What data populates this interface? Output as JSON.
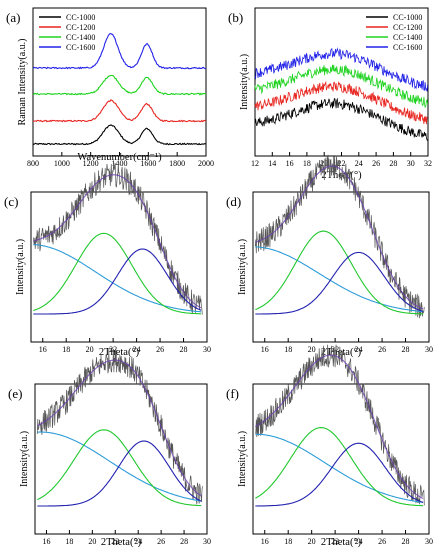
{
  "chart_data": [
    {
      "panel": "(a)",
      "type": "line",
      "xlabel": "Wavenumber(cm⁻¹)",
      "ylabel": "Raman Intensity(a.u.)",
      "xlim": [
        800,
        2000
      ],
      "x_ticks": [
        "800",
        "1000",
        "1200",
        "1400",
        "1600",
        "1800",
        "2000"
      ],
      "legend_position": "top-left",
      "series": [
        {
          "name": "CC-1000",
          "color": "#000000",
          "offset": 0,
          "peaks": [
            {
              "center": 1340,
              "height": 0.55,
              "width": 55
            },
            {
              "center": 1590,
              "height": 0.45,
              "width": 40
            }
          ]
        },
        {
          "name": "CC-1200",
          "color": "#e8251f",
          "offset": 1,
          "peaks": [
            {
              "center": 1340,
              "height": 0.6,
              "width": 55
            },
            {
              "center": 1590,
              "height": 0.5,
              "width": 40
            }
          ]
        },
        {
          "name": "CC-1400",
          "color": "#1ed31e",
          "offset": 2,
          "peaks": [
            {
              "center": 1340,
              "height": 0.55,
              "width": 55
            },
            {
              "center": 1590,
              "height": 0.48,
              "width": 40
            }
          ]
        },
        {
          "name": "CC-1600",
          "color": "#2222e8",
          "offset": 3,
          "peaks": [
            {
              "center": 1340,
              "height": 1.0,
              "width": 50
            },
            {
              "center": 1590,
              "height": 0.7,
              "width": 38
            }
          ]
        }
      ]
    },
    {
      "panel": "(b)",
      "type": "line",
      "xlabel": "2Theta(°)",
      "ylabel": "Intensity(a.u.)",
      "xlim": [
        12,
        32
      ],
      "x_ticks": [
        "12",
        "14",
        "16",
        "18",
        "20",
        "22",
        "24",
        "26",
        "28",
        "30",
        "32"
      ],
      "legend_position": "top-right",
      "series": [
        {
          "name": "CC-1000",
          "color": "#000000",
          "offset": 0
        },
        {
          "name": "CC-1200",
          "color": "#e8251f",
          "offset": 1
        },
        {
          "name": "CC-1400",
          "color": "#1ed31e",
          "offset": 2
        },
        {
          "name": "CC-1600",
          "color": "#2222e8",
          "offset": 3
        }
      ]
    },
    {
      "panel": "(c)",
      "type": "line",
      "xlabel": "2Theta(°)",
      "ylabel": "Intensity(a.u.)",
      "xlim": [
        15,
        30
      ],
      "x_ticks": [
        "16",
        "18",
        "20",
        "22",
        "24",
        "26",
        "28",
        "30"
      ],
      "fit": {
        "raw_color": "#555555",
        "sum_color": "#000000",
        "components": [
          {
            "color": "#2d9cd8",
            "center": 15,
            "height": 0.62,
            "width": 5.5
          },
          {
            "color": "#22c82e",
            "center": 21.2,
            "height": 0.72,
            "width": 2.4
          },
          {
            "color": "#2222b0",
            "center": 24.5,
            "height": 0.58,
            "width": 2.1
          }
        ]
      }
    },
    {
      "panel": "(d)",
      "type": "line",
      "xlabel": "2Theta(°)",
      "ylabel": "Intensity(a.u.)",
      "xlim": [
        15,
        30
      ],
      "x_ticks": [
        "16",
        "18",
        "20",
        "22",
        "24",
        "26",
        "28",
        "30"
      ],
      "fit": {
        "raw_color": "#555555",
        "sum_color": "#000000",
        "components": [
          {
            "color": "#2d9cd8",
            "center": 15,
            "height": 0.6,
            "width": 5.6
          },
          {
            "color": "#22c82e",
            "center": 21,
            "height": 0.74,
            "width": 2.4
          },
          {
            "color": "#2222b0",
            "center": 24,
            "height": 0.55,
            "width": 2.2
          }
        ]
      }
    },
    {
      "panel": "(e)",
      "type": "line",
      "xlabel": "2Theta(°)",
      "ylabel": "Intensity(a.u.)",
      "xlim": [
        15,
        30
      ],
      "x_ticks": [
        "16",
        "18",
        "20",
        "22",
        "24",
        "26",
        "28",
        "30"
      ],
      "fit": {
        "raw_color": "#555555",
        "sum_color": "#000000",
        "components": [
          {
            "color": "#2d9cd8",
            "center": 15.5,
            "height": 0.66,
            "width": 6.0
          },
          {
            "color": "#22c82e",
            "center": 21,
            "height": 0.68,
            "width": 2.6
          },
          {
            "color": "#2222b0",
            "center": 24.5,
            "height": 0.58,
            "width": 2.2
          }
        ]
      }
    },
    {
      "panel": "(f)",
      "type": "line",
      "xlabel": "2Theta(°)",
      "ylabel": "Intensity(a.u.)",
      "xlim": [
        15,
        30
      ],
      "x_ticks": [
        "16",
        "18",
        "20",
        "22",
        "24",
        "26",
        "28",
        "30"
      ],
      "fit": {
        "raw_color": "#555555",
        "sum_color": "#000000",
        "components": [
          {
            "color": "#2d9cd8",
            "center": 15.3,
            "height": 0.64,
            "width": 5.8
          },
          {
            "color": "#22c82e",
            "center": 20.8,
            "height": 0.7,
            "width": 2.6
          },
          {
            "color": "#2222b0",
            "center": 24,
            "height": 0.56,
            "width": 2.3
          }
        ]
      }
    }
  ]
}
